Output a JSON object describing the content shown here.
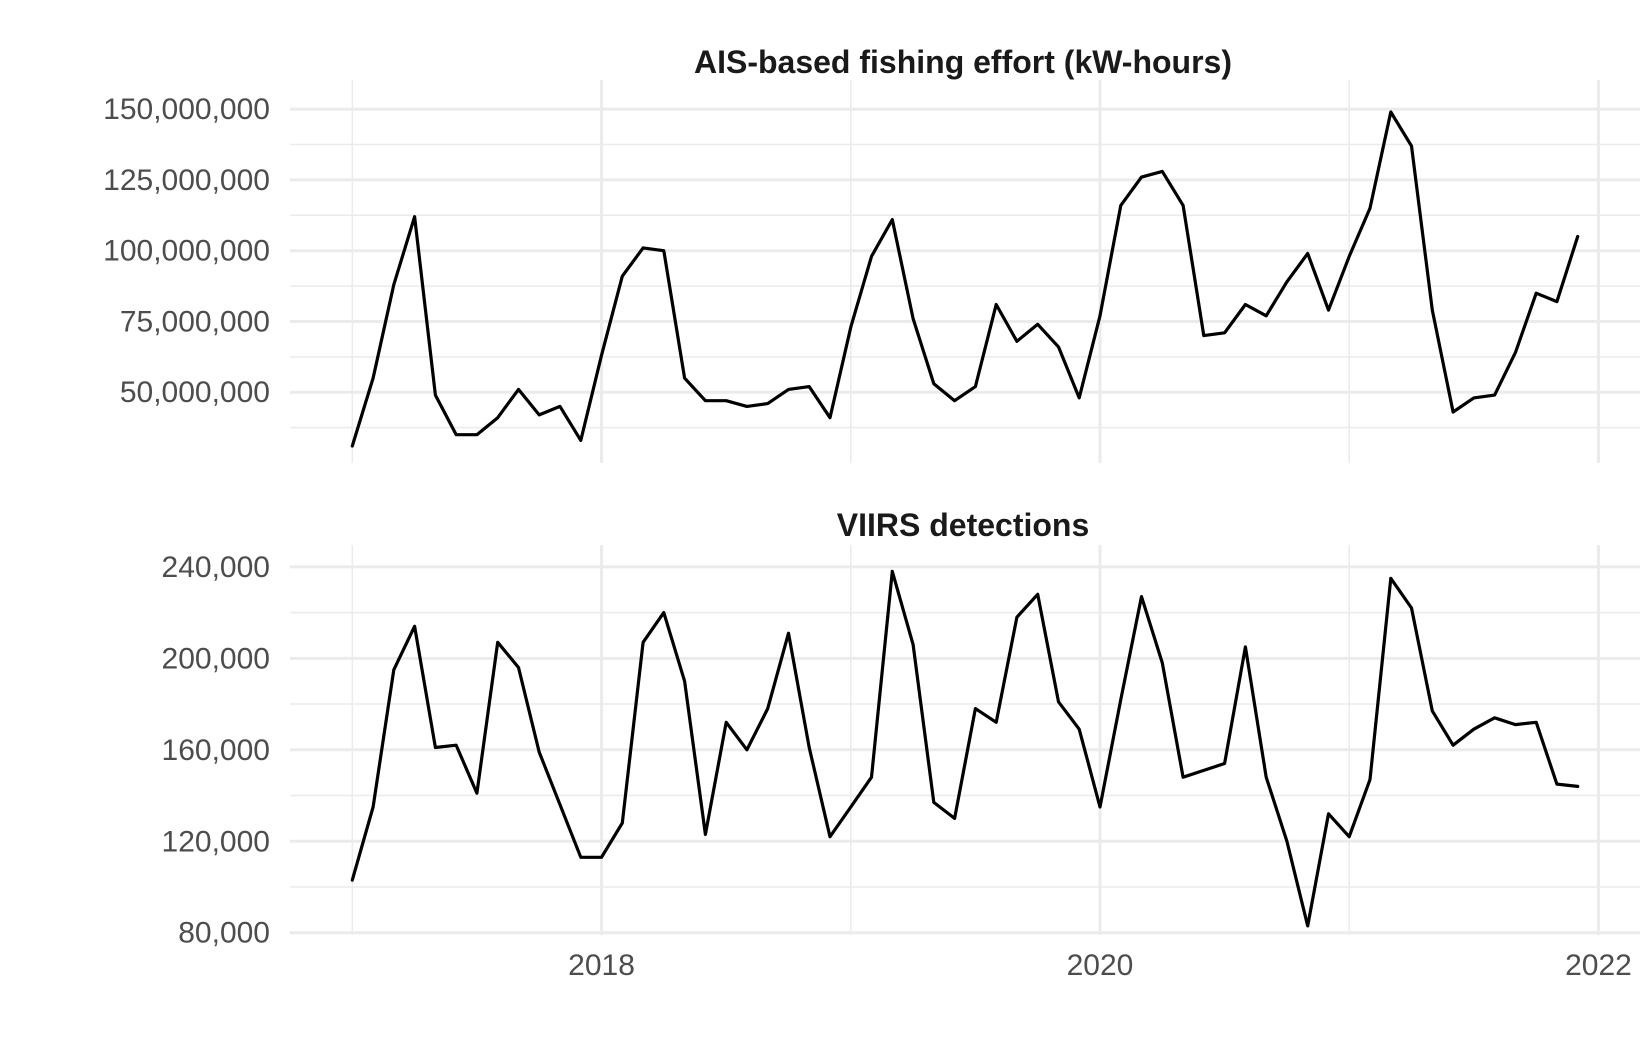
{
  "chart_data": [
    {
      "type": "line",
      "title": "AIS-based fishing effort (kW-hours)",
      "xlabel": "",
      "ylabel": "",
      "x_start": "2017-01",
      "x_interval": "month",
      "xlim": [
        "2016-10",
        "2022-03"
      ],
      "x_ticks": [
        "2018",
        "2020",
        "2022"
      ],
      "ylim": [
        25000000,
        155000000
      ],
      "y_ticks": [
        50000000,
        75000000,
        100000000,
        125000000,
        150000000
      ],
      "y_tick_labels": [
        "50,000,000",
        "75,000,000",
        "100,000,000",
        "125,000,000",
        "150,000,000"
      ],
      "grid": true,
      "series": [
        {
          "values": [
            31000000,
            55000000,
            88000000,
            112000000,
            49000000,
            35000000,
            35000000,
            41000000,
            51000000,
            42000000,
            45000000,
            33000000,
            63000000,
            91000000,
            101000000,
            100000000,
            55000000,
            47000000,
            47000000,
            45000000,
            46000000,
            51000000,
            52000000,
            41000000,
            73000000,
            98000000,
            111000000,
            76000000,
            53000000,
            47000000,
            52000000,
            81000000,
            68000000,
            74000000,
            66000000,
            48000000,
            77000000,
            116000000,
            126000000,
            128000000,
            116000000,
            70000000,
            71000000,
            81000000,
            77000000,
            89000000,
            99000000,
            79000000,
            98000000,
            115000000,
            149000000,
            137000000,
            79000000,
            43000000,
            48000000,
            49000000,
            64000000,
            85000000,
            82000000,
            105000000
          ]
        }
      ]
    },
    {
      "type": "line",
      "title": "VIIRS detections",
      "xlabel": "",
      "ylabel": "",
      "x_start": "2017-01",
      "x_interval": "month",
      "xlim": [
        "2016-10",
        "2022-03"
      ],
      "x_ticks": [
        "2018",
        "2020",
        "2022"
      ],
      "ylim": [
        79000,
        243000
      ],
      "y_ticks": [
        80000,
        120000,
        160000,
        200000,
        240000
      ],
      "y_tick_labels": [
        "80,000",
        "120,000",
        "160,000",
        "200,000",
        "240,000"
      ],
      "grid": true,
      "series": [
        {
          "values": [
            103000,
            135000,
            195000,
            214000,
            161000,
            162000,
            141000,
            207000,
            196000,
            159000,
            136000,
            113000,
            113000,
            128000,
            207000,
            220000,
            190000,
            123000,
            172000,
            160000,
            178000,
            211000,
            161000,
            122000,
            135000,
            148000,
            238000,
            206000,
            137000,
            130000,
            178000,
            172000,
            218000,
            228000,
            181000,
            169000,
            135000,
            182000,
            227000,
            198000,
            148000,
            151000,
            154000,
            205000,
            148000,
            120000,
            83000,
            132000,
            122000,
            147000,
            235000,
            222000,
            177000,
            162000,
            169000,
            174000,
            171000,
            172000,
            145000,
            144000
          ]
        }
      ]
    }
  ]
}
